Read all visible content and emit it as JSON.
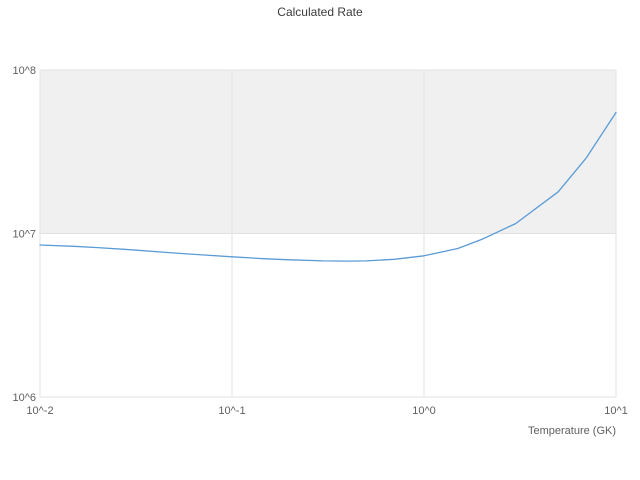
{
  "title": "Calculated Rate",
  "colors": {
    "background": "#ffffff",
    "line": "#5b9bd5",
    "band": "#f0f0f0",
    "grid": "#e2e2e2",
    "title_text": "#3c3c3c",
    "tick_text": "#5f5f5f"
  },
  "chart_data": {
    "type": "line",
    "title": "Calculated Rate",
    "xlabel": "Temperature (GK)",
    "ylabel": "",
    "x_scale": "log",
    "y_scale": "log",
    "xlim": [
      0.01,
      10
    ],
    "ylim": [
      1000000,
      100000000
    ],
    "x_tick_values": [
      0.01,
      0.1,
      1,
      10
    ],
    "x_tick_labels": [
      "10^-2",
      "10^-1",
      "10^0",
      "10^1"
    ],
    "y_tick_values": [
      1000000,
      10000000,
      100000000
    ],
    "y_tick_labels": [
      "10^6",
      "10^7",
      "10^8"
    ],
    "grid": true,
    "legend": "none",
    "shaded_band_y": [
      10000000,
      100000000
    ],
    "series": [
      {
        "name": "Calculated Rate",
        "x": [
          0.01,
          0.015,
          0.02,
          0.03,
          0.05,
          0.07,
          0.1,
          0.15,
          0.2,
          0.3,
          0.4,
          0.5,
          0.7,
          1.0,
          1.5,
          2.0,
          3.0,
          5.0,
          7.0,
          10.0
        ],
        "y": [
          8500000.0,
          8350000.0,
          8200000.0,
          7950000.0,
          7600000.0,
          7400000.0,
          7200000.0,
          7000000.0,
          6900000.0,
          6800000.0,
          6780000.0,
          6800000.0,
          6950000.0,
          7300000.0,
          8100000.0,
          9200000.0,
          11500000.0,
          18000000.0,
          29000000.0,
          55000000.0
        ]
      }
    ]
  }
}
